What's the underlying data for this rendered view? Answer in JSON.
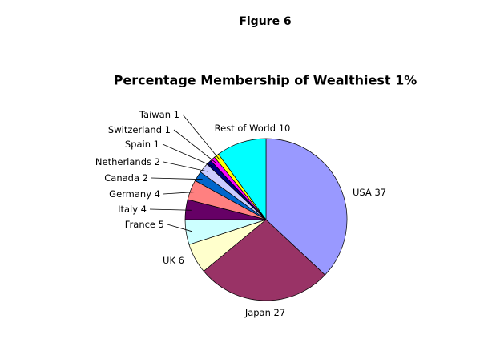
{
  "chart_data": {
    "type": "pie",
    "figure_label": "Figure 6",
    "title": "Percentage Membership of Wealthiest 1%",
    "categories": [
      "USA",
      "Japan",
      "UK",
      "France",
      "Italy",
      "Germany",
      "Canada",
      "Netherlands",
      "Spain",
      "Switzerland",
      "Taiwan",
      "Rest of World"
    ],
    "values": [
      37,
      27,
      6,
      5,
      4,
      4,
      2,
      2,
      1,
      1,
      1,
      10
    ],
    "colors": [
      "#9999ff",
      "#993366",
      "#ffffcc",
      "#ccffff",
      "#660066",
      "#ff8080",
      "#0066cc",
      "#ccccff",
      "#000080",
      "#ff00ff",
      "#ffff00",
      "#00ffff"
    ]
  }
}
